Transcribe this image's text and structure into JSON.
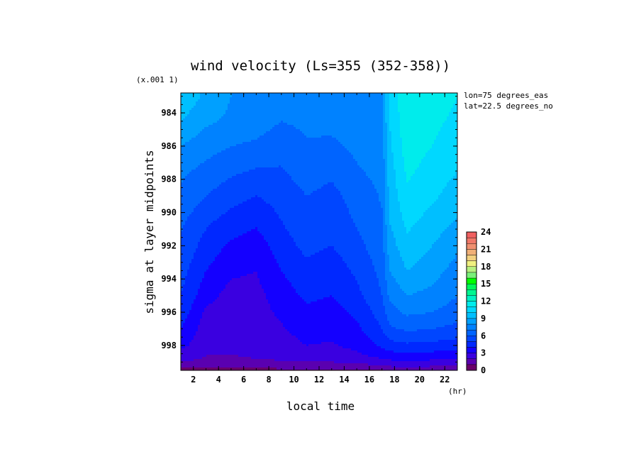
{
  "chart_data": {
    "type": "heatmap",
    "title": "wind velocity (Ls=355 (352-358))",
    "xlabel": "local time",
    "xunit": "(hr)",
    "ylabel": "sigma at layer midpoints",
    "yscale_note": "(x.001 1)",
    "annotations": [
      "lon=75 degrees_eas",
      "lat=22.5 degrees_no"
    ],
    "x_ticks": [
      "2",
      "4",
      "6",
      "8",
      "10",
      "12",
      "14",
      "16",
      "18",
      "20",
      "22"
    ],
    "y_ticks": [
      "984",
      "986",
      "988",
      "990",
      "992",
      "994",
      "996",
      "998"
    ],
    "xlim": [
      1,
      23
    ],
    "ylim": [
      999.5,
      982.8
    ],
    "x": [
      1,
      3,
      5,
      7,
      9,
      11,
      13,
      15,
      17,
      17.6,
      19,
      21,
      23
    ],
    "y": [
      983,
      984.5,
      986,
      987.5,
      989,
      990.5,
      992,
      993.5,
      995,
      996,
      997,
      998,
      998.8,
      999.3,
      999.5
    ],
    "z": [
      [
        9.8,
        8.8,
        8.0,
        7.8,
        7.5,
        7.5,
        7.6,
        7.8,
        8.0,
        10.0,
        12.0,
        11.5,
        11.0
      ],
      [
        9.0,
        8.2,
        7.8,
        7.5,
        7.0,
        7.2,
        7.3,
        7.5,
        7.8,
        10.0,
        11.8,
        11.2,
        10.8
      ],
      [
        8.0,
        7.4,
        7.0,
        6.8,
        6.4,
        6.9,
        6.8,
        7.2,
        7.5,
        9.8,
        11.5,
        11.0,
        10.5
      ],
      [
        7.2,
        6.7,
        6.2,
        5.9,
        5.9,
        6.5,
        6.2,
        6.9,
        7.3,
        9.5,
        11.2,
        10.6,
        10.0
      ],
      [
        6.8,
        6.0,
        5.4,
        5.0,
        5.4,
        6.0,
        5.7,
        6.4,
        7.1,
        9.3,
        10.8,
        10.2,
        9.5
      ],
      [
        6.2,
        5.2,
        4.6,
        4.2,
        5.0,
        5.8,
        5.4,
        6.1,
        6.9,
        9.0,
        10.3,
        9.6,
        8.9
      ],
      [
        5.8,
        4.6,
        3.8,
        3.5,
        4.5,
        5.3,
        5.0,
        5.7,
        6.6,
        8.5,
        9.7,
        9.0,
        8.2
      ],
      [
        5.4,
        4.0,
        3.2,
        3.0,
        4.0,
        4.7,
        4.4,
        5.2,
        6.3,
        8.0,
        9.0,
        8.4,
        7.6
      ],
      [
        5.0,
        3.4,
        2.6,
        2.7,
        3.5,
        4.2,
        4.0,
        4.7,
        6.0,
        7.2,
        8.0,
        7.7,
        7.0
      ],
      [
        4.6,
        2.8,
        2.4,
        2.6,
        3.2,
        3.8,
        3.6,
        4.2,
        5.5,
        6.6,
        7.2,
        7.0,
        6.5
      ],
      [
        4.0,
        2.5,
        2.3,
        2.5,
        2.9,
        3.4,
        3.3,
        3.8,
        5.0,
        5.8,
        6.2,
        6.0,
        5.7
      ],
      [
        3.3,
        2.3,
        2.2,
        2.4,
        2.6,
        3.0,
        2.9,
        3.3,
        4.2,
        4.6,
        4.8,
        4.7,
        4.5
      ],
      [
        2.4,
        1.9,
        1.9,
        2.0,
        2.2,
        2.4,
        2.4,
        2.6,
        3.0,
        3.2,
        3.3,
        3.2,
        3.1
      ],
      [
        1.3,
        1.1,
        1.1,
        1.2,
        1.3,
        1.4,
        1.4,
        1.5,
        1.8,
        1.9,
        2.0,
        1.9,
        1.8
      ],
      [
        0.6,
        0.5,
        0.5,
        0.6,
        0.7,
        0.8,
        0.8,
        0.9,
        1.0,
        1.1,
        1.1,
        1.0,
        1.0
      ]
    ],
    "colorbar": {
      "ticks": [
        "0",
        "3",
        "6",
        "9",
        "12",
        "15",
        "18",
        "21",
        "24"
      ],
      "levels": [
        0,
        1,
        2,
        3,
        4,
        5,
        6,
        7,
        8,
        9,
        10,
        11,
        12,
        13,
        14,
        15,
        16,
        17,
        18,
        19,
        20,
        21,
        22,
        23,
        24
      ],
      "colors": [
        "#6a006a",
        "#5a00b0",
        "#3a00e0",
        "#1400ff",
        "#0028ff",
        "#0046ff",
        "#0064ff",
        "#0082ff",
        "#00a0ff",
        "#00bfff",
        "#00d8ff",
        "#00ecec",
        "#00f2c4",
        "#00f690",
        "#00f85a",
        "#00ff00",
        "#7af07a",
        "#b6f080",
        "#f0f080",
        "#f2d080",
        "#f0b078",
        "#f09070",
        "#f07868",
        "#f06060"
      ]
    },
    "grid": false,
    "legend": "colorbar-right"
  }
}
